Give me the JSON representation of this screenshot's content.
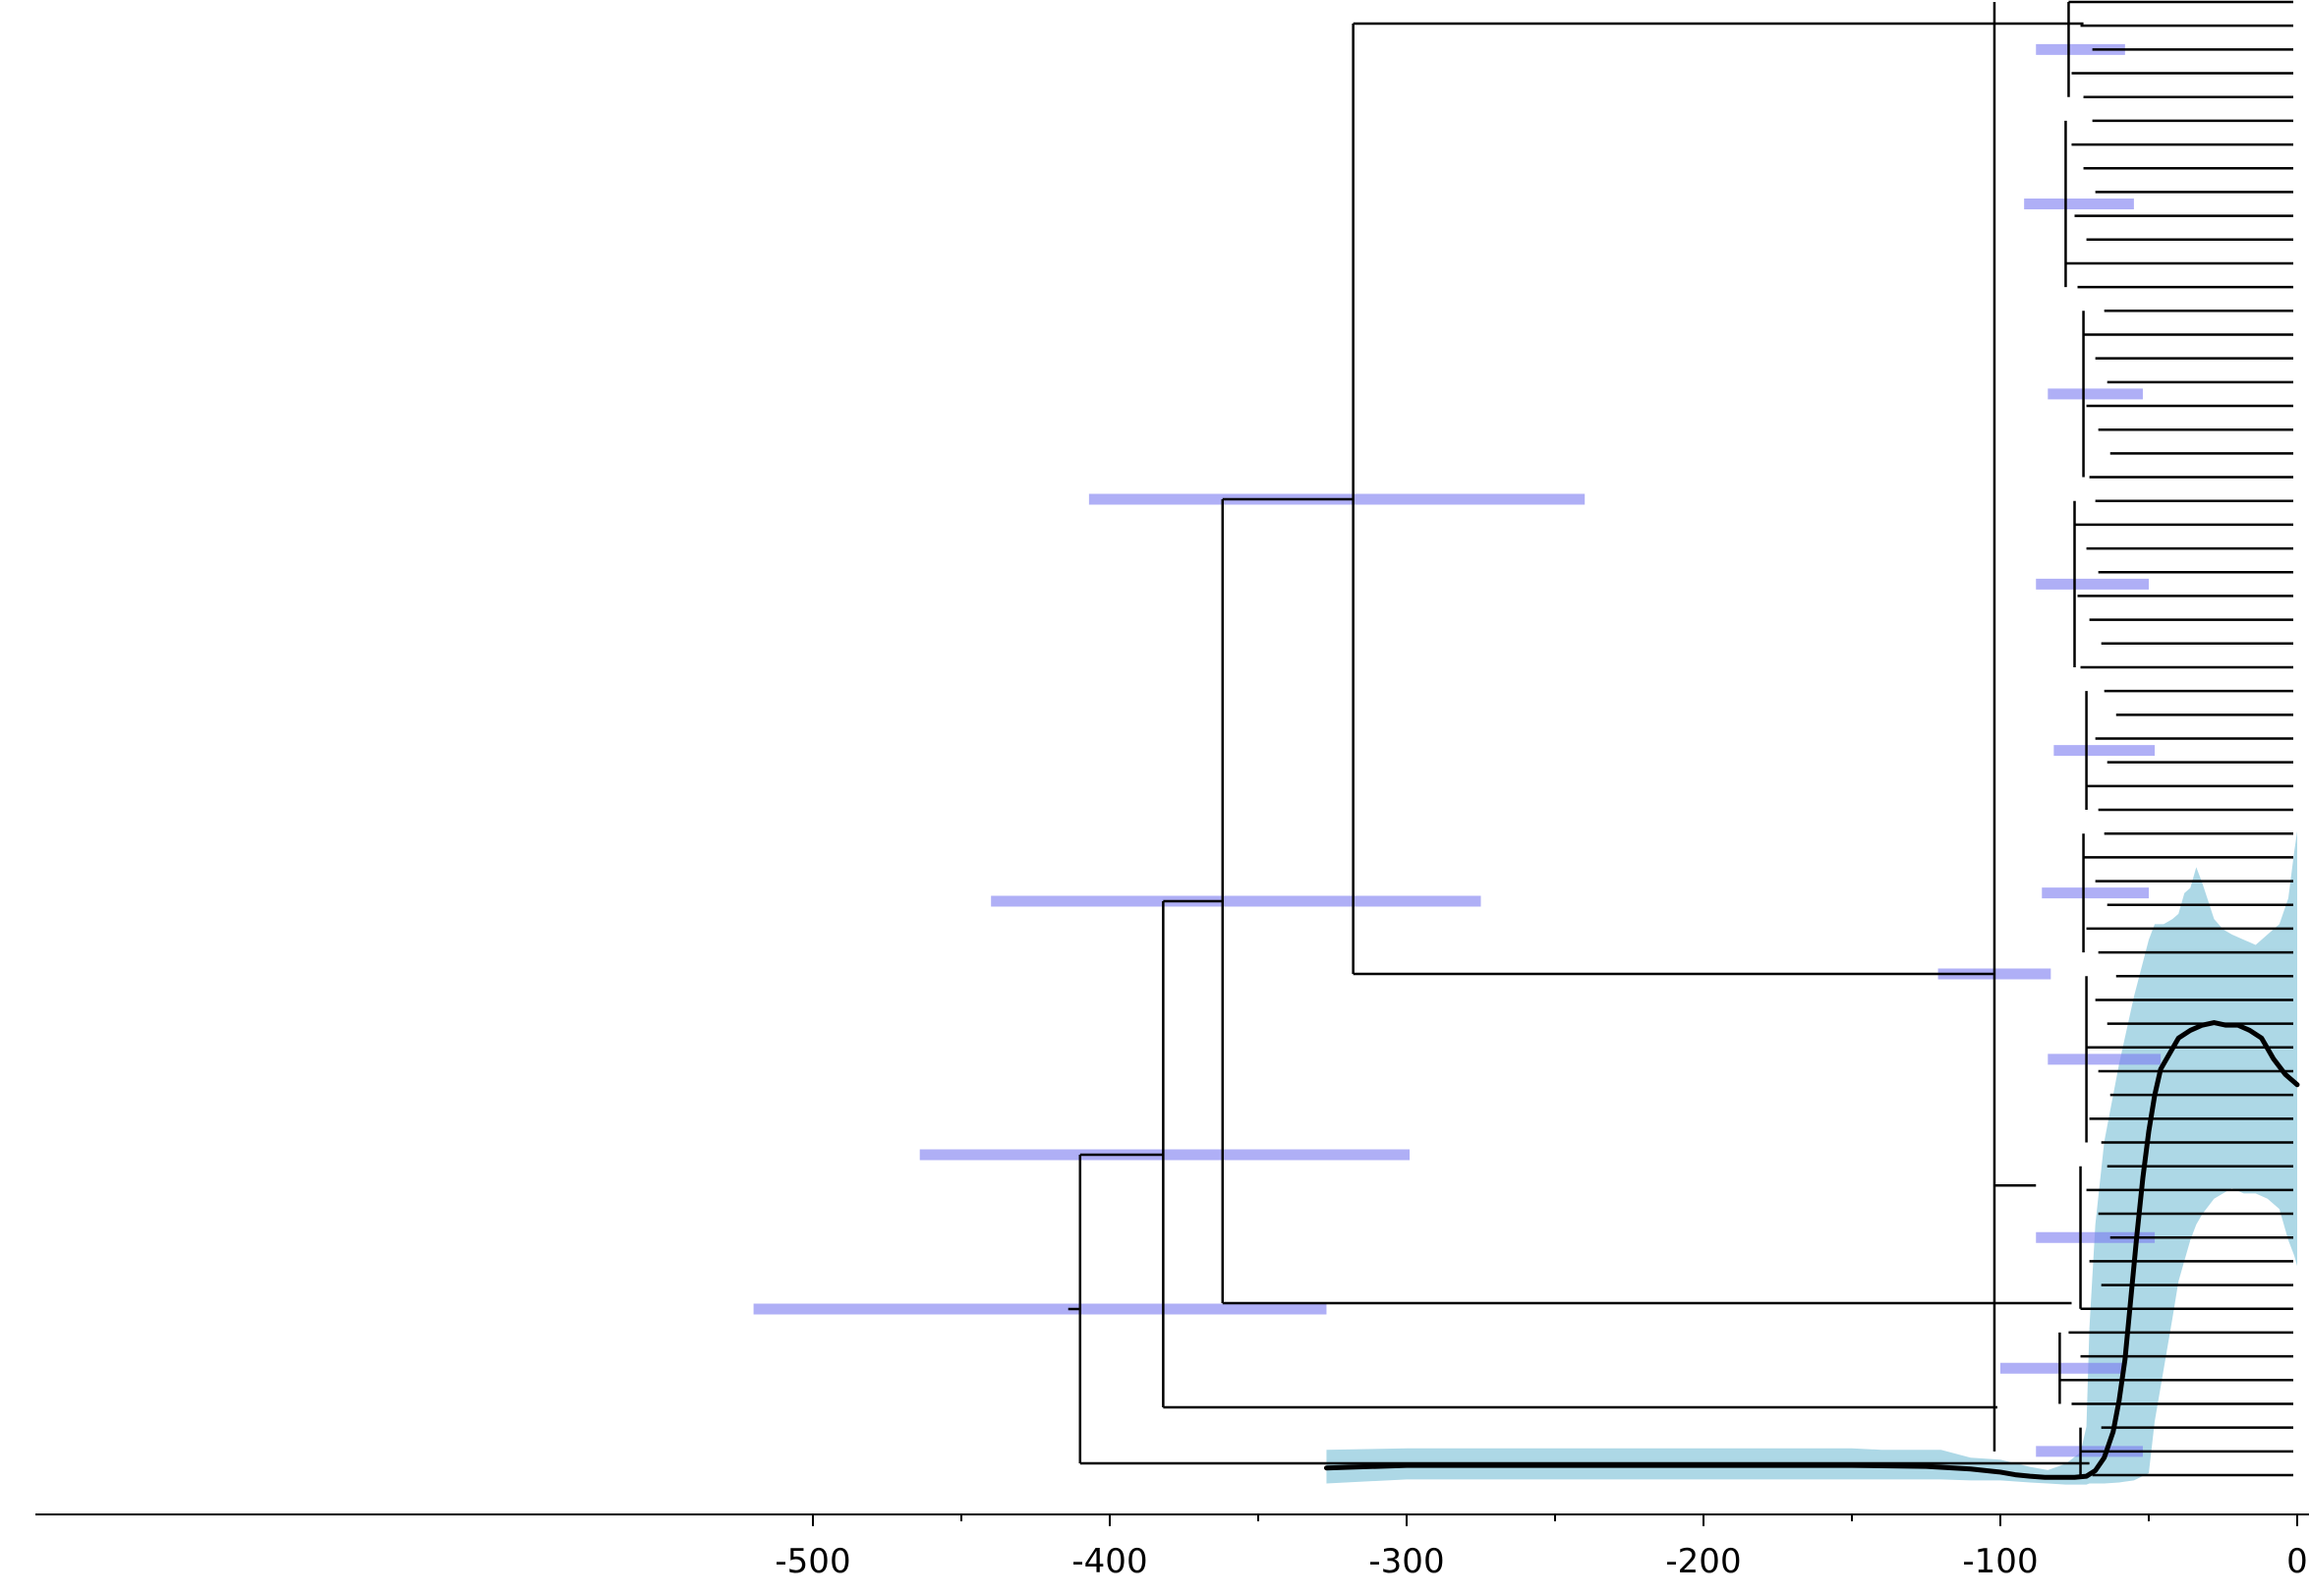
{
  "chart_data": {
    "type": "line",
    "title": "",
    "xlabel": "",
    "ylabel": "",
    "xlim": [
      -505,
      0
    ],
    "x_ticks": [
      {
        "value": -500,
        "label": "-500"
      },
      {
        "value": -400,
        "label": "-400"
      },
      {
        "value": -300,
        "label": "-300"
      },
      {
        "value": -200,
        "label": "-200"
      },
      {
        "value": -100,
        "label": "-100"
      },
      {
        "value": 0,
        "label": "0"
      }
    ],
    "x_minor_ticks": [
      -450,
      -350,
      -250,
      -150,
      -50
    ],
    "tree": {
      "tip_count": 63,
      "tip_age": 0,
      "root_age": -410,
      "root_stem_start": -414,
      "node_ages_major": [
        -410,
        -382,
        -362,
        -318,
        -102,
        -72
      ],
      "age_intervals_95pct": [
        {
          "node": "root",
          "age": -414,
          "lower": -520,
          "upper": -327
        },
        {
          "node": "n382",
          "age": -382,
          "lower": -464,
          "upper": -299
        },
        {
          "node": "n362",
          "age": -362,
          "lower": -440,
          "upper": -275
        },
        {
          "node": "n318",
          "age": -318,
          "lower": -407,
          "upper": -240
        },
        {
          "node": "n102",
          "age": -102,
          "lower": -121,
          "upper": -83
        }
      ]
    },
    "series": [
      {
        "type": "line",
        "x": [
          -327,
          -300,
          -250,
          -200,
          -150,
          -125,
          -110,
          -100,
          -95,
          -90,
          -85,
          -80,
          -75,
          -71,
          -68,
          -65,
          -62,
          -60,
          -58,
          -56,
          -54,
          -52,
          -50,
          -48,
          -46,
          -43,
          -40,
          -36,
          -32,
          -28,
          -24,
          -20,
          -16,
          -12,
          -8,
          -4,
          0
        ],
        "y": [
          0.01,
          0.015,
          0.015,
          0.015,
          0.015,
          0.013,
          0.008,
          0.002,
          -0.003,
          -0.006,
          -0.008,
          -0.008,
          -0.008,
          -0.006,
          0.005,
          0.03,
          0.08,
          0.14,
          0.22,
          0.34,
          0.46,
          0.57,
          0.66,
          0.73,
          0.78,
          0.81,
          0.84,
          0.855,
          0.865,
          0.87,
          0.865,
          0.865,
          0.855,
          0.84,
          0.8,
          0.77,
          0.75
        ]
      },
      {
        "type": "area",
        "x": [
          -327,
          -300,
          -250,
          -200,
          -150,
          -140,
          -120,
          -110,
          -100,
          -90,
          -84,
          -78,
          -73,
          -71,
          -70,
          -68,
          -65,
          -60,
          -55,
          -50,
          -48,
          -45,
          -42,
          -40,
          -38,
          -36,
          -34,
          -32,
          -28,
          -25,
          -22,
          -18,
          -14,
          -10,
          -6,
          -3,
          -1,
          0
        ],
        "y_low": [
          -0.02,
          -0.012,
          -0.012,
          -0.012,
          -0.012,
          -0.012,
          -0.012,
          -0.014,
          -0.014,
          -0.018,
          -0.02,
          -0.022,
          -0.022,
          -0.022,
          -0.02,
          -0.02,
          -0.02,
          -0.018,
          -0.014,
          0.0,
          0.1,
          0.2,
          0.3,
          0.37,
          0.41,
          0.45,
          0.48,
          0.5,
          0.53,
          0.54,
          0.55,
          0.54,
          0.54,
          0.53,
          0.51,
          0.45,
          0.42,
          0.4
        ],
        "y_high": [
          0.045,
          0.048,
          0.048,
          0.048,
          0.048,
          0.045,
          0.045,
          0.03,
          0.026,
          0.012,
          0.006,
          0.018,
          0.04,
          0.09,
          0.28,
          0.48,
          0.64,
          0.79,
          0.92,
          1.03,
          1.06,
          1.06,
          1.07,
          1.08,
          1.12,
          1.13,
          1.17,
          1.14,
          1.07,
          1.05,
          1.04,
          1.03,
          1.02,
          1.04,
          1.06,
          1.11,
          1.2,
          1.24
        ]
      }
    ],
    "colors": {
      "tree": "#000000",
      "interval_bar": "#7a7af0",
      "ribbon": "#add8e6",
      "line": "#000000",
      "axis": "#000000"
    }
  }
}
